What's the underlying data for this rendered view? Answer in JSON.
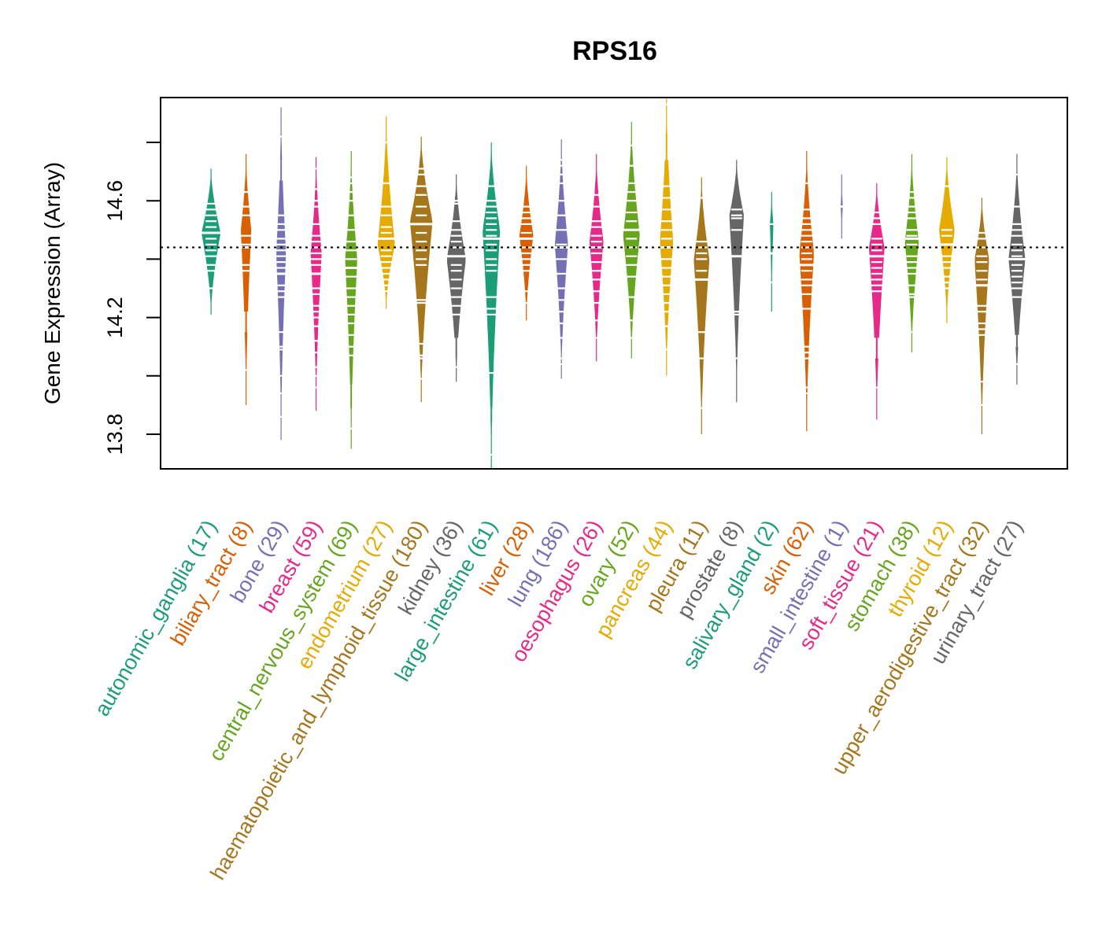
{
  "chart_data": {
    "type": "violin",
    "title": "RPS16",
    "xlabel": "",
    "ylabel": "Gene Expression (Array)",
    "ylim": [
      13.68,
      14.95
    ],
    "y_ticks": [
      13.8,
      14.0,
      14.2,
      14.4,
      14.6,
      14.8
    ],
    "y_tick_labels": [
      "13.8",
      "",
      "14.2",
      "",
      "14.6",
      ""
    ],
    "reference_line": 14.44,
    "grid": false,
    "legend": "none",
    "categories": [
      {
        "name": "autonomic_ganglia",
        "n": 17,
        "color": "#1B9E77",
        "median": 14.49,
        "min": 14.21,
        "max": 14.71,
        "widest": 14.49,
        "width": 0.55,
        "marks": [
          14.59,
          14.57,
          14.55,
          14.53,
          14.51,
          14.49,
          14.47,
          14.45,
          14.43,
          14.41,
          14.38,
          14.36,
          14.3
        ]
      },
      {
        "name": "biliary_tract",
        "n": 8,
        "color": "#D95F02",
        "median": 14.44,
        "min": 13.9,
        "max": 14.76,
        "widest": 14.5,
        "width": 0.3,
        "marks": [
          14.63,
          14.58,
          14.55,
          14.48,
          14.45,
          14.38,
          14.36,
          14.02
        ],
        "gaps": [
          [
            14.22,
            14.15
          ]
        ]
      },
      {
        "name": "bone",
        "n": 29,
        "color": "#7570B3",
        "median": 14.35,
        "min": 13.78,
        "max": 14.92,
        "widest": 14.42,
        "width": 0.28,
        "marks": [
          14.82,
          14.55,
          14.52,
          14.5,
          14.47,
          14.45,
          14.43,
          14.41,
          14.39,
          14.37,
          14.35,
          14.31,
          14.29,
          14.27,
          14.15,
          14.1,
          14.09,
          14.0,
          13.94,
          13.86
        ],
        "gaps": [
          [
            14.74,
            14.67
          ]
        ]
      },
      {
        "name": "breast",
        "n": 59,
        "color": "#E7298A",
        "median": 14.35,
        "min": 13.88,
        "max": 14.75,
        "widest": 14.42,
        "width": 0.32,
        "marks": [
          14.71,
          14.64,
          14.6,
          14.58,
          14.52,
          14.48,
          14.46,
          14.44,
          14.42,
          14.4,
          14.38,
          14.3,
          14.28,
          14.24,
          14.22,
          14.2,
          14.17,
          14.12,
          14.08,
          14.03,
          14.0,
          13.96
        ]
      },
      {
        "name": "central_nervous_system",
        "n": 69,
        "color": "#66A61E",
        "median": 14.37,
        "min": 13.75,
        "max": 14.77,
        "widest": 14.4,
        "width": 0.35,
        "marks": [
          14.68,
          14.66,
          14.63,
          14.6,
          14.55,
          14.5,
          14.46,
          14.43,
          14.4,
          14.37,
          14.34,
          14.3,
          14.27,
          14.24,
          14.21,
          14.18,
          14.14,
          14.1,
          14.07,
          13.82
        ],
        "gaps": [
          [
            13.97,
            13.89
          ]
        ]
      },
      {
        "name": "endometrium",
        "n": 27,
        "color": "#E6AB02",
        "median": 14.47,
        "min": 14.23,
        "max": 14.89,
        "widest": 14.45,
        "width": 0.5,
        "marks": [
          14.8,
          14.66,
          14.58,
          14.55,
          14.51,
          14.49,
          14.47,
          14.43,
          14.41,
          14.39,
          14.37,
          14.35,
          14.33,
          14.31,
          14.29
        ]
      },
      {
        "name": "haematopoietic_and_lymphoid_tissue",
        "n": 180,
        "color": "#A6761D",
        "median": 14.52,
        "min": 13.91,
        "max": 14.82,
        "widest": 14.53,
        "width": 0.65,
        "marks": [
          14.71,
          14.69,
          14.65,
          14.62,
          14.58,
          14.55,
          14.52,
          14.49,
          14.46,
          14.43,
          14.4,
          14.38,
          14.26,
          14.25,
          14.11,
          14.07,
          14.06,
          13.99
        ]
      },
      {
        "name": "kidney",
        "n": 36,
        "color": "#666666",
        "median": 14.41,
        "min": 13.98,
        "max": 14.69,
        "widest": 14.4,
        "width": 0.55,
        "marks": [
          14.6,
          14.59,
          14.53,
          14.5,
          14.48,
          14.46,
          14.44,
          14.41,
          14.38,
          14.36,
          14.33,
          14.3,
          14.27,
          14.24,
          14.21,
          14.03
        ],
        "gaps": [
          [
            14.13,
            14.07
          ]
        ]
      },
      {
        "name": "large_intestine",
        "n": 61,
        "color": "#1B9E77",
        "median": 14.47,
        "min": 13.68,
        "max": 14.8,
        "widest": 14.5,
        "width": 0.5,
        "marks": [
          14.65,
          14.6,
          14.58,
          14.56,
          14.54,
          14.52,
          14.5,
          14.48,
          14.45,
          14.43,
          14.4,
          14.38,
          14.36,
          14.27,
          14.23,
          14.21,
          14.01,
          13.73
        ],
        "gaps": [
          [
            13.89,
            13.84
          ]
        ]
      },
      {
        "name": "liver",
        "n": 28,
        "color": "#D95F02",
        "median": 14.47,
        "min": 14.19,
        "max": 14.72,
        "widest": 14.48,
        "width": 0.4,
        "marks": [
          14.58,
          14.56,
          14.54,
          14.52,
          14.49,
          14.44,
          14.42,
          14.4,
          14.38,
          14.36,
          14.29,
          14.25
        ]
      },
      {
        "name": "lung",
        "n": 186,
        "color": "#7570B3",
        "median": 14.44,
        "min": 13.99,
        "max": 14.81,
        "widest": 14.45,
        "width": 0.38,
        "marks": [
          14.74,
          14.72,
          14.69,
          14.66,
          14.6,
          14.55,
          14.5,
          14.45,
          14.4,
          14.35,
          14.3,
          14.26,
          14.22,
          14.18,
          14.13,
          14.06,
          14.04
        ]
      },
      {
        "name": "oesophagus",
        "n": 26,
        "color": "#E7298A",
        "median": 14.44,
        "min": 14.05,
        "max": 14.76,
        "widest": 14.46,
        "width": 0.4,
        "marks": [
          14.62,
          14.58,
          14.53,
          14.51,
          14.48,
          14.46,
          14.42,
          14.39,
          14.36,
          14.33,
          14.29,
          14.25,
          14.19,
          14.13
        ]
      },
      {
        "name": "ovary",
        "n": 52,
        "color": "#66A61E",
        "median": 14.5,
        "min": 14.06,
        "max": 14.87,
        "widest": 14.48,
        "width": 0.48,
        "marks": [
          14.79,
          14.72,
          14.66,
          14.63,
          14.6,
          14.56,
          14.53,
          14.5,
          14.47,
          14.44,
          14.41,
          14.38,
          14.34,
          14.27,
          14.19,
          14.13
        ]
      },
      {
        "name": "pancreas",
        "n": 44,
        "color": "#E6AB02",
        "median": 14.44,
        "min": 14.0,
        "max": 14.95,
        "widest": 14.46,
        "width": 0.38,
        "marks": [
          14.93,
          14.65,
          14.61,
          14.57,
          14.53,
          14.5,
          14.47,
          14.44,
          14.4,
          14.37,
          14.34,
          14.31,
          14.28,
          14.25,
          14.22,
          14.17,
          14.09
        ],
        "gaps": [
          [
            14.83,
            14.74
          ]
        ]
      },
      {
        "name": "pleura",
        "n": 11,
        "color": "#A6761D",
        "median": 14.33,
        "min": 13.8,
        "max": 14.68,
        "widest": 14.4,
        "width": 0.45,
        "marks": [
          14.61,
          14.46,
          14.44,
          14.42,
          14.4,
          14.36,
          14.33,
          14.15,
          14.06,
          13.89
        ]
      },
      {
        "name": "prostate",
        "n": 8,
        "color": "#666666",
        "median": 14.41,
        "min": 13.91,
        "max": 14.74,
        "widest": 14.55,
        "width": 0.42,
        "marks": [
          14.57,
          14.55,
          14.54,
          14.5,
          14.22,
          14.21,
          14.06
        ]
      },
      {
        "name": "salivary_gland",
        "n": 2,
        "color": "#1B9E77",
        "median": 14.42,
        "min": 14.22,
        "max": 14.63,
        "widest": 14.52,
        "width": 0.1,
        "marks": [
          14.52,
          14.32
        ]
      },
      {
        "name": "skin",
        "n": 62,
        "color": "#D95F02",
        "median": 14.38,
        "min": 13.81,
        "max": 14.77,
        "widest": 14.42,
        "width": 0.42,
        "marks": [
          14.66,
          14.57,
          14.54,
          14.52,
          14.5,
          14.48,
          14.46,
          14.44,
          14.42,
          14.4,
          14.38,
          14.36,
          14.33,
          14.31,
          14.28,
          14.23,
          14.1,
          14.08,
          14.06,
          13.96,
          13.94
        ]
      },
      {
        "name": "small_intestine",
        "n": 1,
        "color": "#7570B3",
        "median": 14.58,
        "min": 14.47,
        "max": 14.69,
        "widest": 14.58,
        "width": 0.06,
        "marks": [
          14.58
        ]
      },
      {
        "name": "soft_tissue",
        "n": 21,
        "color": "#E7298A",
        "median": 14.41,
        "min": 13.85,
        "max": 14.66,
        "widest": 14.44,
        "width": 0.45,
        "marks": [
          14.56,
          14.54,
          14.52,
          14.47,
          14.45,
          14.43,
          14.39,
          14.37,
          14.35,
          14.33,
          14.31,
          14.29,
          13.96
        ],
        "gaps": [
          [
            14.13,
            14.06
          ]
        ]
      },
      {
        "name": "stomach",
        "n": 38,
        "color": "#66A61E",
        "median": 14.47,
        "min": 14.08,
        "max": 14.76,
        "widest": 14.46,
        "width": 0.4,
        "marks": [
          14.63,
          14.61,
          14.58,
          14.56,
          14.54,
          14.5,
          14.48,
          14.45,
          14.41,
          14.39,
          14.37,
          14.35,
          14.31,
          14.28,
          14.27,
          14.15
        ]
      },
      {
        "name": "thyroid",
        "n": 12,
        "color": "#E6AB02",
        "median": 14.45,
        "min": 14.18,
        "max": 14.75,
        "widest": 14.5,
        "width": 0.45,
        "marks": [
          14.65,
          14.5,
          14.48,
          14.41,
          14.39,
          14.37,
          14.34,
          14.32,
          14.3
        ]
      },
      {
        "name": "upper_aerodigestive_tract",
        "n": 32,
        "color": "#A6761D",
        "median": 14.31,
        "min": 13.8,
        "max": 14.61,
        "widest": 14.4,
        "width": 0.42,
        "marks": [
          14.49,
          14.47,
          14.44,
          14.41,
          14.39,
          14.36,
          14.33,
          14.24,
          14.22,
          14.18,
          14.16,
          14.14,
          13.98,
          13.9
        ]
      },
      {
        "name": "urinary_tract",
        "n": 27,
        "color": "#666666",
        "median": 14.4,
        "min": 13.97,
        "max": 14.76,
        "widest": 14.4,
        "width": 0.48,
        "marks": [
          14.69,
          14.58,
          14.52,
          14.5,
          14.48,
          14.45,
          14.43,
          14.41,
          14.38,
          14.36,
          14.34,
          14.32,
          14.3,
          14.27,
          14.04
        ],
        "gaps": [
          [
            14.14,
            14.1
          ]
        ]
      }
    ]
  }
}
